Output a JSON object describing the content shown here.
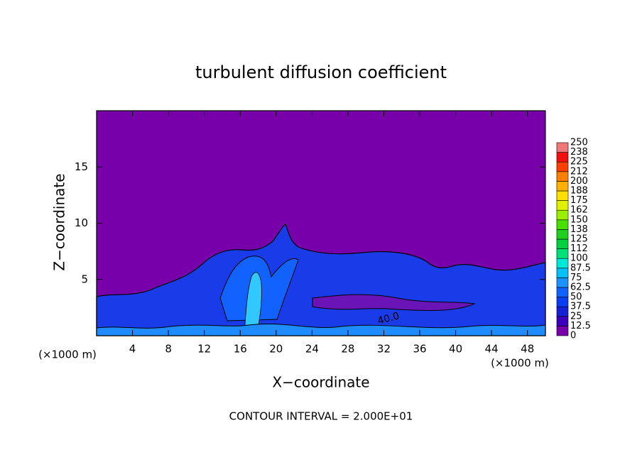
{
  "chart_data": {
    "type": "contour",
    "title": "turbulent diffusion coefficient",
    "x_label": "X−coordinate",
    "y_label": "Z−coordinate",
    "x_unit_label": "(×1000 m)",
    "footer": "CONTOUR INTERVAL = 2.000E+01",
    "contour_label": "40.0",
    "xlim": [
      0,
      50
    ],
    "xticks": [
      4,
      8,
      12,
      16,
      20,
      24,
      28,
      32,
      36,
      40,
      44,
      48
    ],
    "ylim": [
      0,
      20
    ],
    "yticks": [
      5,
      10,
      15
    ],
    "colorbar": {
      "levels": [
        0,
        12.5,
        25,
        37.5,
        50,
        62.5,
        75,
        87.5,
        100,
        112,
        125,
        138,
        150,
        162,
        175,
        188,
        200,
        212,
        225,
        238,
        250
      ],
      "colors": [
        "#7800aa",
        "#3c00bc",
        "#1420d4",
        "#0a3cf0",
        "#1262ff",
        "#1a92ff",
        "#00c0ff",
        "#00e8d8",
        "#00e078",
        "#00d040",
        "#20d020",
        "#48e000",
        "#98f000",
        "#e0f000",
        "#ffe000",
        "#ffb000",
        "#ff8000",
        "#ff4000",
        "#f01010",
        "#f07878"
      ]
    }
  }
}
